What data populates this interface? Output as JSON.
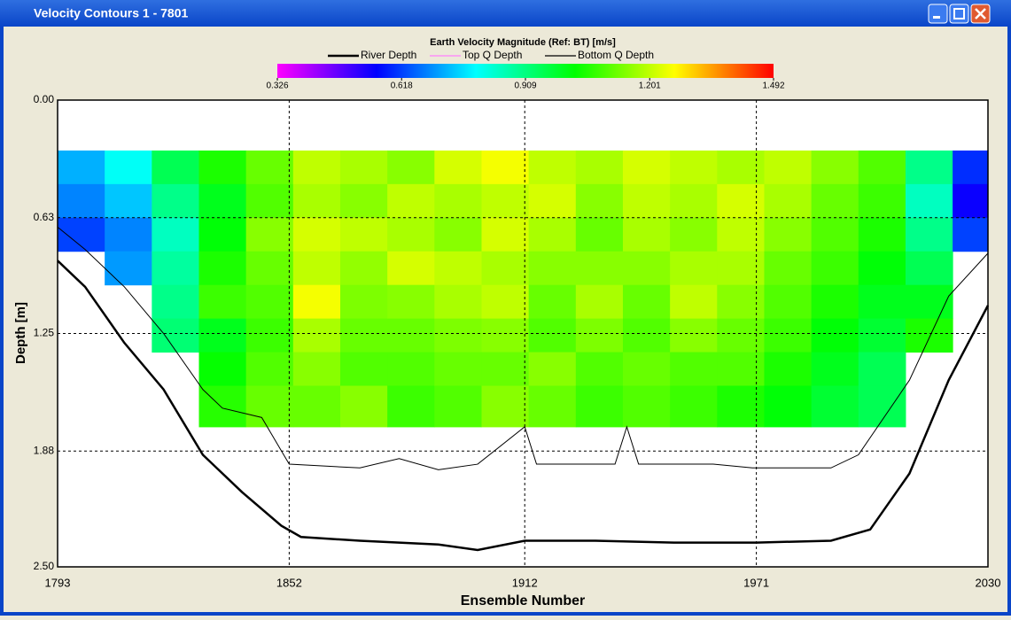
{
  "window": {
    "title": "Velocity Contours 1 - 7801"
  },
  "chart_data": {
    "type": "heatmap",
    "title": "Earth Velocity Magnitude (Ref: BT) [m/s]",
    "xlabel": "Ensemble Number",
    "ylabel": "Depth [m]",
    "xlim": [
      1793,
      2030
    ],
    "xticks": [
      1793,
      1852,
      1912,
      1971,
      2030
    ],
    "ylim": [
      0,
      2.5
    ],
    "yticks": [
      {
        "value": 0,
        "label": "0.00"
      },
      0.63,
      1.25,
      1.88,
      {
        "value": 2.5,
        "label": "2.50"
      }
    ],
    "grid": true,
    "y_inverted": true,
    "colorbar": {
      "range": [
        0.326,
        1.492
      ],
      "ticks": [
        0.326,
        0.618,
        0.909,
        1.201,
        1.492
      ],
      "colors": [
        "#ff00ff",
        "#0000ff",
        "#00ffff",
        "#00ff00",
        "#ffff00",
        "#ff0000"
      ]
    },
    "heatmap": {
      "x_edges": [
        1793,
        1805,
        1817,
        1829,
        1841,
        1853,
        1865,
        1877,
        1889,
        1901,
        1913,
        1925,
        1937,
        1949,
        1961,
        1973,
        1985,
        1997,
        2009,
        2021,
        2030
      ],
      "depth_edges": [
        0.27,
        0.45,
        0.63,
        0.81,
        0.99,
        1.17,
        1.35,
        1.53,
        1.75
      ],
      "values": [
        [
          0.72,
          0.68,
          0.62,
          null,
          null,
          null,
          null,
          null
        ],
        [
          0.8,
          0.74,
          0.68,
          0.7,
          null,
          null,
          null,
          null
        ],
        [
          0.95,
          0.9,
          0.85,
          0.88,
          0.9,
          0.92,
          null,
          null
        ],
        [
          1.05,
          1.0,
          1.02,
          1.05,
          1.08,
          1.0,
          1.03,
          1.06
        ],
        [
          1.12,
          1.1,
          1.15,
          1.12,
          1.1,
          1.08,
          1.1,
          1.12
        ],
        [
          1.2,
          1.18,
          1.22,
          1.2,
          1.25,
          1.18,
          1.15,
          1.12
        ],
        [
          1.18,
          1.15,
          1.2,
          1.16,
          1.14,
          1.12,
          1.1,
          1.15
        ],
        [
          1.15,
          1.2,
          1.18,
          1.22,
          1.15,
          1.12,
          1.1,
          1.08
        ],
        [
          1.22,
          1.18,
          1.15,
          1.2,
          1.18,
          1.14,
          1.12,
          1.1
        ],
        [
          1.25,
          1.2,
          1.22,
          1.18,
          1.2,
          1.15,
          1.12,
          1.15
        ],
        [
          1.2,
          1.22,
          1.18,
          1.15,
          1.12,
          1.1,
          1.15,
          1.12
        ],
        [
          1.18,
          1.15,
          1.12,
          1.15,
          1.18,
          1.14,
          1.1,
          1.08
        ],
        [
          1.22,
          1.2,
          1.18,
          1.15,
          1.12,
          1.1,
          1.12,
          1.1
        ],
        [
          1.2,
          1.18,
          1.15,
          1.18,
          1.2,
          1.15,
          1.1,
          1.08
        ],
        [
          1.18,
          1.22,
          1.2,
          1.18,
          1.15,
          1.12,
          1.1,
          1.05
        ],
        [
          1.2,
          1.18,
          1.15,
          1.12,
          1.1,
          1.08,
          1.05,
          1.02
        ],
        [
          1.15,
          1.12,
          1.1,
          1.08,
          1.05,
          1.02,
          1.0,
          0.98
        ],
        [
          1.1,
          1.08,
          1.05,
          1.02,
          1.0,
          0.98,
          0.95,
          0.95
        ],
        [
          0.9,
          0.85,
          0.9,
          0.95,
          1.0,
          1.05,
          null,
          null
        ],
        [
          0.6,
          0.55,
          0.62,
          null,
          null,
          null,
          null,
          null
        ]
      ]
    },
    "lines": [
      {
        "name": "River Depth",
        "color": "#000000",
        "x": [
          1793,
          1800,
          1810,
          1820,
          1830,
          1840,
          1850,
          1855,
          1870,
          1890,
          1900,
          1912,
          1930,
          1950,
          1971,
          1990,
          2000,
          2010,
          2020,
          2030
        ],
        "values": [
          0.86,
          1.0,
          1.3,
          1.55,
          1.9,
          2.1,
          2.28,
          2.34,
          2.36,
          2.38,
          2.41,
          2.36,
          2.36,
          2.37,
          2.37,
          2.36,
          2.3,
          2.0,
          1.5,
          1.1
        ]
      },
      {
        "name": "Top Q Depth",
        "color": "#ff80ff",
        "x": [],
        "values": []
      },
      {
        "name": "Bottom Q Depth",
        "color": "#000000",
        "x": [
          1793,
          1800,
          1810,
          1820,
          1830,
          1835,
          1845,
          1852,
          1870,
          1880,
          1890,
          1900,
          1912,
          1915,
          1935,
          1938,
          1941,
          1960,
          1970,
          1990,
          1997,
          2010,
          2020,
          2030
        ],
        "values": [
          0.68,
          0.8,
          1.0,
          1.25,
          1.55,
          1.65,
          1.7,
          1.95,
          1.97,
          1.92,
          1.98,
          1.95,
          1.75,
          1.95,
          1.95,
          1.75,
          1.95,
          1.95,
          1.97,
          1.97,
          1.9,
          1.5,
          1.05,
          0.82
        ]
      }
    ]
  }
}
